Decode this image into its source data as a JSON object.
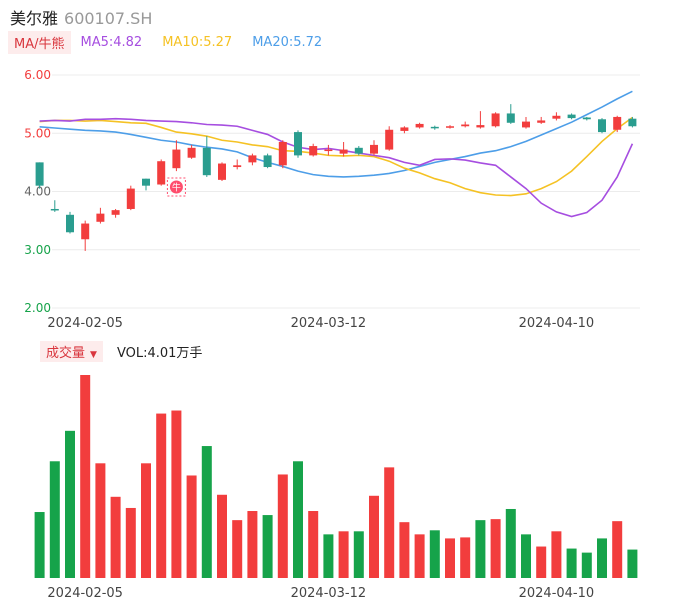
{
  "header": {
    "name": "美尔雅",
    "code": "600107.SH"
  },
  "ma_legend": {
    "tag": "MA/牛熊",
    "items": [
      {
        "label": "MA5:4.82",
        "color": "#a64ee0"
      },
      {
        "label": "MA10:5.27",
        "color": "#f5c224"
      },
      {
        "label": "MA20:5.72",
        "color": "#4d9ee8"
      }
    ]
  },
  "volume_legend": {
    "tag": "成交量",
    "text": "VOL:4.01万手"
  },
  "colors": {
    "up": "#f23d3d",
    "down": "#16a34a",
    "teal_down": "#2a9d8f",
    "badge": "#ff4d6d"
  },
  "badge_text": "牛",
  "chart_data": [
    {
      "type": "candlestick",
      "y_ticks": [
        "6.00",
        "5.00",
        "4.00",
        "3.00",
        "2.00"
      ],
      "ylim": [
        2.0,
        6.0
      ],
      "x_ticks": [
        "2024-02-05",
        "2024-03-12",
        "2024-04-10"
      ],
      "grid": true,
      "candles": [
        {
          "o": 4.5,
          "c": 4.1,
          "h": 4.5,
          "l": 4.05
        },
        {
          "o": 3.7,
          "c": 3.68,
          "h": 3.85,
          "l": 3.65
        },
        {
          "o": 3.6,
          "c": 3.3,
          "h": 3.65,
          "l": 3.28
        },
        {
          "o": 3.18,
          "c": 3.45,
          "h": 3.5,
          "l": 2.98
        },
        {
          "o": 3.48,
          "c": 3.62,
          "h": 3.72,
          "l": 3.45
        },
        {
          "o": 3.6,
          "c": 3.68,
          "h": 3.7,
          "l": 3.55
        },
        {
          "o": 3.7,
          "c": 4.05,
          "h": 4.1,
          "l": 3.68
        },
        {
          "o": 4.22,
          "c": 4.1,
          "h": 4.22,
          "l": 4.02
        },
        {
          "o": 4.12,
          "c": 4.52,
          "h": 4.55,
          "l": 4.1
        },
        {
          "o": 4.4,
          "c": 4.72,
          "h": 4.88,
          "l": 4.35
        },
        {
          "o": 4.58,
          "c": 4.75,
          "h": 4.8,
          "l": 4.56
        },
        {
          "o": 4.75,
          "c": 4.28,
          "h": 4.95,
          "l": 4.25
        },
        {
          "o": 4.2,
          "c": 4.48,
          "h": 4.5,
          "l": 4.18
        },
        {
          "o": 4.42,
          "c": 4.45,
          "h": 4.55,
          "l": 4.38
        },
        {
          "o": 4.5,
          "c": 4.62,
          "h": 4.65,
          "l": 4.45
        },
        {
          "o": 4.62,
          "c": 4.42,
          "h": 4.65,
          "l": 4.4
        },
        {
          "o": 4.45,
          "c": 4.85,
          "h": 4.88,
          "l": 4.4
        },
        {
          "o": 5.02,
          "c": 4.62,
          "h": 5.05,
          "l": 4.58
        },
        {
          "o": 4.62,
          "c": 4.78,
          "h": 4.82,
          "l": 4.6
        },
        {
          "o": 4.7,
          "c": 4.72,
          "h": 4.8,
          "l": 4.62
        },
        {
          "o": 4.65,
          "c": 4.72,
          "h": 4.85,
          "l": 4.6
        },
        {
          "o": 4.75,
          "c": 4.65,
          "h": 4.78,
          "l": 4.62
        },
        {
          "o": 4.65,
          "c": 4.8,
          "h": 4.88,
          "l": 4.62
        },
        {
          "o": 4.72,
          "c": 5.06,
          "h": 5.12,
          "l": 4.7
        },
        {
          "o": 5.04,
          "c": 5.1,
          "h": 5.12,
          "l": 5.0
        },
        {
          "o": 5.1,
          "c": 5.16,
          "h": 5.18,
          "l": 5.08
        },
        {
          "o": 5.11,
          "c": 5.09,
          "h": 5.13,
          "l": 5.06
        },
        {
          "o": 5.1,
          "c": 5.12,
          "h": 5.14,
          "l": 5.08
        },
        {
          "o": 5.12,
          "c": 5.15,
          "h": 5.2,
          "l": 5.1
        },
        {
          "o": 5.1,
          "c": 5.14,
          "h": 5.38,
          "l": 5.08
        },
        {
          "o": 5.12,
          "c": 5.34,
          "h": 5.36,
          "l": 5.1
        },
        {
          "o": 5.34,
          "c": 5.18,
          "h": 5.5,
          "l": 5.16
        },
        {
          "o": 5.1,
          "c": 5.2,
          "h": 5.28,
          "l": 5.08
        },
        {
          "o": 5.18,
          "c": 5.22,
          "h": 5.28,
          "l": 5.16
        },
        {
          "o": 5.25,
          "c": 5.3,
          "h": 5.36,
          "l": 5.22
        },
        {
          "o": 5.32,
          "c": 5.26,
          "h": 5.34,
          "l": 5.24
        },
        {
          "o": 5.27,
          "c": 5.24,
          "h": 5.28,
          "l": 5.22
        },
        {
          "o": 5.24,
          "c": 5.02,
          "h": 5.26,
          "l": 5.0
        },
        {
          "o": 5.06,
          "c": 5.28,
          "h": 5.3,
          "l": 5.02
        },
        {
          "o": 5.25,
          "c": 5.12,
          "h": 5.28,
          "l": 5.1
        }
      ],
      "ma5": [
        5.21,
        5.22,
        5.21,
        5.24,
        5.24,
        5.25,
        5.24,
        5.22,
        5.21,
        5.2,
        5.18,
        5.15,
        5.14,
        5.12,
        5.05,
        4.98,
        4.85,
        4.76,
        4.72,
        4.74,
        4.7,
        4.66,
        4.62,
        4.58,
        4.5,
        4.45,
        4.55,
        4.56,
        4.54,
        4.49,
        4.45,
        4.25,
        4.05,
        3.8,
        3.65,
        3.57,
        3.64,
        3.85,
        4.25,
        4.82
      ],
      "ma10": [
        5.2,
        5.22,
        5.22,
        5.21,
        5.22,
        5.2,
        5.18,
        5.17,
        5.1,
        5.02,
        4.99,
        4.95,
        4.88,
        4.85,
        4.8,
        4.77,
        4.7,
        4.69,
        4.66,
        4.62,
        4.61,
        4.62,
        4.6,
        4.52,
        4.4,
        4.32,
        4.22,
        4.15,
        4.05,
        3.98,
        3.94,
        3.93,
        3.96,
        4.05,
        4.17,
        4.35,
        4.6,
        4.86,
        5.08,
        5.27
      ],
      "ma20": [
        5.11,
        5.09,
        5.07,
        5.05,
        5.04,
        5.02,
        4.98,
        4.93,
        4.88,
        4.85,
        4.8,
        4.76,
        4.73,
        4.68,
        4.58,
        4.5,
        4.43,
        4.35,
        4.29,
        4.26,
        4.25,
        4.26,
        4.28,
        4.31,
        4.36,
        4.43,
        4.5,
        4.55,
        4.6,
        4.66,
        4.7,
        4.77,
        4.86,
        4.97,
        5.08,
        5.19,
        5.32,
        5.45,
        5.59,
        5.72
      ]
    },
    {
      "type": "bar",
      "title": "成交量",
      "x_ticks": [
        "2024-02-05",
        "2024-03-12",
        "2024-04-10"
      ],
      "bars": [
        {
          "v": 6.5,
          "up": false
        },
        {
          "v": 11.5,
          "up": false
        },
        {
          "v": 14.5,
          "up": false
        },
        {
          "v": 20.0,
          "up": true
        },
        {
          "v": 11.3,
          "up": true
        },
        {
          "v": 8.0,
          "up": true
        },
        {
          "v": 6.9,
          "up": true
        },
        {
          "v": 11.3,
          "up": true
        },
        {
          "v": 16.2,
          "up": true
        },
        {
          "v": 16.5,
          "up": true
        },
        {
          "v": 10.1,
          "up": true
        },
        {
          "v": 13.0,
          "up": false
        },
        {
          "v": 8.2,
          "up": true
        },
        {
          "v": 5.7,
          "up": true
        },
        {
          "v": 6.6,
          "up": true
        },
        {
          "v": 6.2,
          "up": false
        },
        {
          "v": 10.2,
          "up": true
        },
        {
          "v": 11.5,
          "up": false
        },
        {
          "v": 6.6,
          "up": true
        },
        {
          "v": 4.3,
          "up": false
        },
        {
          "v": 4.6,
          "up": true
        },
        {
          "v": 4.6,
          "up": false
        },
        {
          "v": 8.1,
          "up": true
        },
        {
          "v": 10.9,
          "up": true
        },
        {
          "v": 5.5,
          "up": true
        },
        {
          "v": 4.3,
          "up": true
        },
        {
          "v": 4.7,
          "up": false
        },
        {
          "v": 3.9,
          "up": true
        },
        {
          "v": 4.0,
          "up": true
        },
        {
          "v": 5.7,
          "up": false
        },
        {
          "v": 5.8,
          "up": true
        },
        {
          "v": 6.8,
          "up": false
        },
        {
          "v": 4.3,
          "up": false
        },
        {
          "v": 3.1,
          "up": true
        },
        {
          "v": 4.6,
          "up": true
        },
        {
          "v": 2.9,
          "up": false
        },
        {
          "v": 2.5,
          "up": false
        },
        {
          "v": 3.9,
          "up": false
        },
        {
          "v": 5.6,
          "up": true
        },
        {
          "v": 2.8,
          "up": false
        }
      ],
      "vmax": 20.0
    }
  ]
}
